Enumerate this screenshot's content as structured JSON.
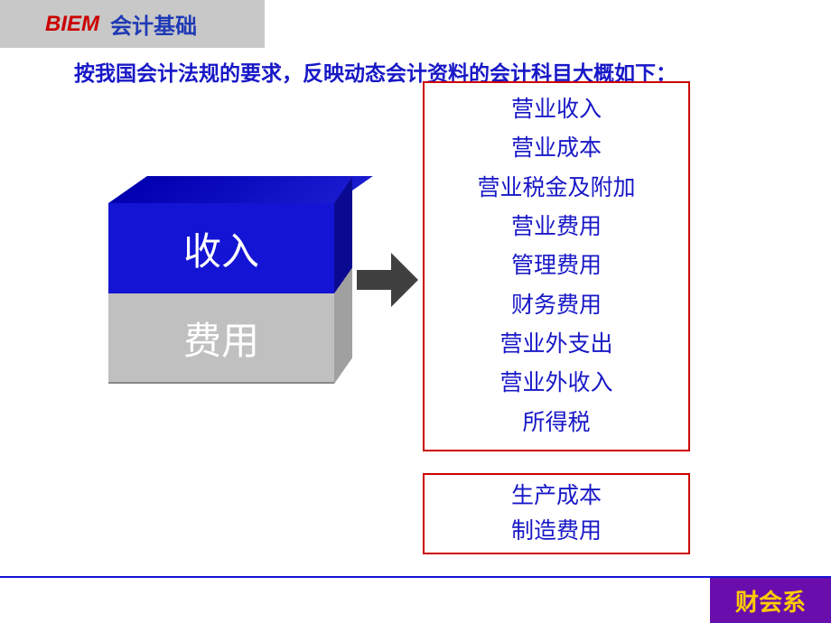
{
  "header": {
    "brand": "BIEM",
    "title": "会计基础"
  },
  "main_text": "按我国会计法规的要求，反映动态会计资料的会计科目大概如下：",
  "cube": {
    "top_label": "收入",
    "bottom_label": "费用",
    "top_color": "#1414d4",
    "bottom_color": "#c0c0c0",
    "text_color": "#ffffff"
  },
  "box1": {
    "border_color": "#cc0000",
    "items": [
      "营业收入",
      "营业成本",
      "营业税金及附加",
      "营业费用",
      "管理费用",
      "财务费用",
      "营业外支出",
      "营业外收入",
      "所得税"
    ]
  },
  "box2": {
    "border_color": "#cc0000",
    "items": [
      "生产成本",
      "制造费用"
    ]
  },
  "footer": {
    "label": "财会系",
    "background_color": "#6a0dad",
    "text_color": "#ffcc00"
  },
  "colors": {
    "text_blue": "#1818c7",
    "brand_red": "#cc0000",
    "line_blue": "#1414d4",
    "header_gray": "#c8c8c8"
  }
}
